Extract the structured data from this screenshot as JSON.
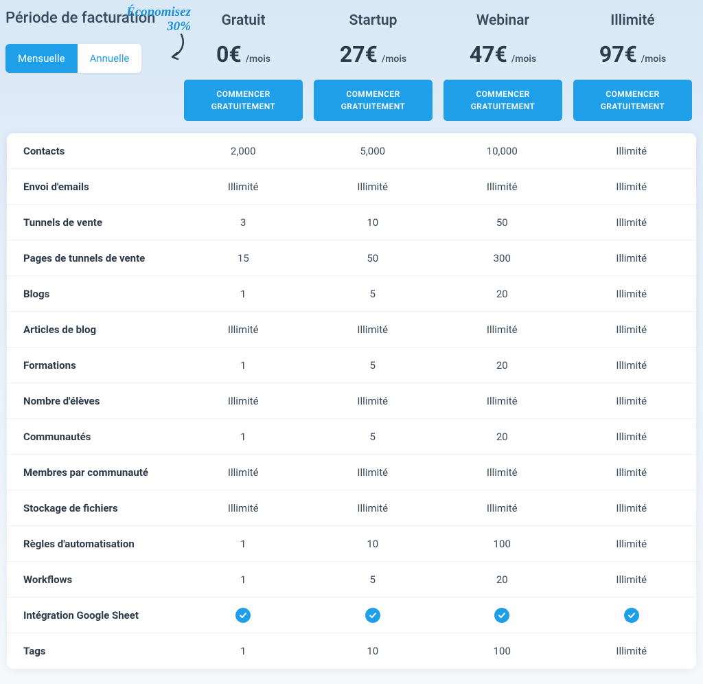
{
  "colors": {
    "accent": "#1f9fe8",
    "text": "#2d3a4a",
    "cursive": "#1a8fd8",
    "row_border": "#eef1f4",
    "card_bg": "#ffffff"
  },
  "billing": {
    "title": "Période de facturation",
    "savings_note": "Économisez 30%",
    "toggle": {
      "monthly": "Mensuelle",
      "annual": "Annuelle",
      "active": "monthly"
    }
  },
  "cta_label": "COMMENCER GRATUITEMENT",
  "plans": [
    {
      "name": "Gratuit",
      "price": "0€",
      "period": "/mois"
    },
    {
      "name": "Startup",
      "price": "27€",
      "period": "/mois"
    },
    {
      "name": "Webinar",
      "price": "47€",
      "period": "/mois"
    },
    {
      "name": "Illimité",
      "price": "97€",
      "period": "/mois"
    }
  ],
  "features": [
    {
      "label": "Contacts",
      "values": [
        "2,000",
        "5,000",
        "10,000",
        "Illimité"
      ]
    },
    {
      "label": "Envoi d'emails",
      "values": [
        "Illimité",
        "Illimité",
        "Illimité",
        "Illimité"
      ]
    },
    {
      "label": "Tunnels de vente",
      "values": [
        "3",
        "10",
        "50",
        "Illimité"
      ]
    },
    {
      "label": "Pages de tunnels de vente",
      "values": [
        "15",
        "50",
        "300",
        "Illimité"
      ]
    },
    {
      "label": "Blogs",
      "values": [
        "1",
        "5",
        "20",
        "Illimité"
      ]
    },
    {
      "label": "Articles de blog",
      "values": [
        "Illimité",
        "Illimité",
        "Illimité",
        "Illimité"
      ]
    },
    {
      "label": "Formations",
      "values": [
        "1",
        "5",
        "20",
        "Illimité"
      ]
    },
    {
      "label": "Nombre d'élèves",
      "values": [
        "Illimité",
        "Illimité",
        "Illimité",
        "Illimité"
      ]
    },
    {
      "label": "Communautés",
      "values": [
        "1",
        "5",
        "20",
        "Illimité"
      ]
    },
    {
      "label": "Membres par communauté",
      "values": [
        "Illimité",
        "Illimité",
        "Illimité",
        "Illimité"
      ]
    },
    {
      "label": "Stockage de fichiers",
      "values": [
        "Illimité",
        "Illimité",
        "Illimité",
        "Illimité"
      ]
    },
    {
      "label": "Règles d'automatisation",
      "values": [
        "1",
        "10",
        "100",
        "Illimité"
      ]
    },
    {
      "label": "Workflows",
      "values": [
        "1",
        "5",
        "20",
        "Illimité"
      ]
    },
    {
      "label": "Intégration Google Sheet",
      "values": [
        "check",
        "check",
        "check",
        "check"
      ]
    },
    {
      "label": "Tags",
      "values": [
        "1",
        "10",
        "100",
        "Illimité"
      ]
    }
  ]
}
